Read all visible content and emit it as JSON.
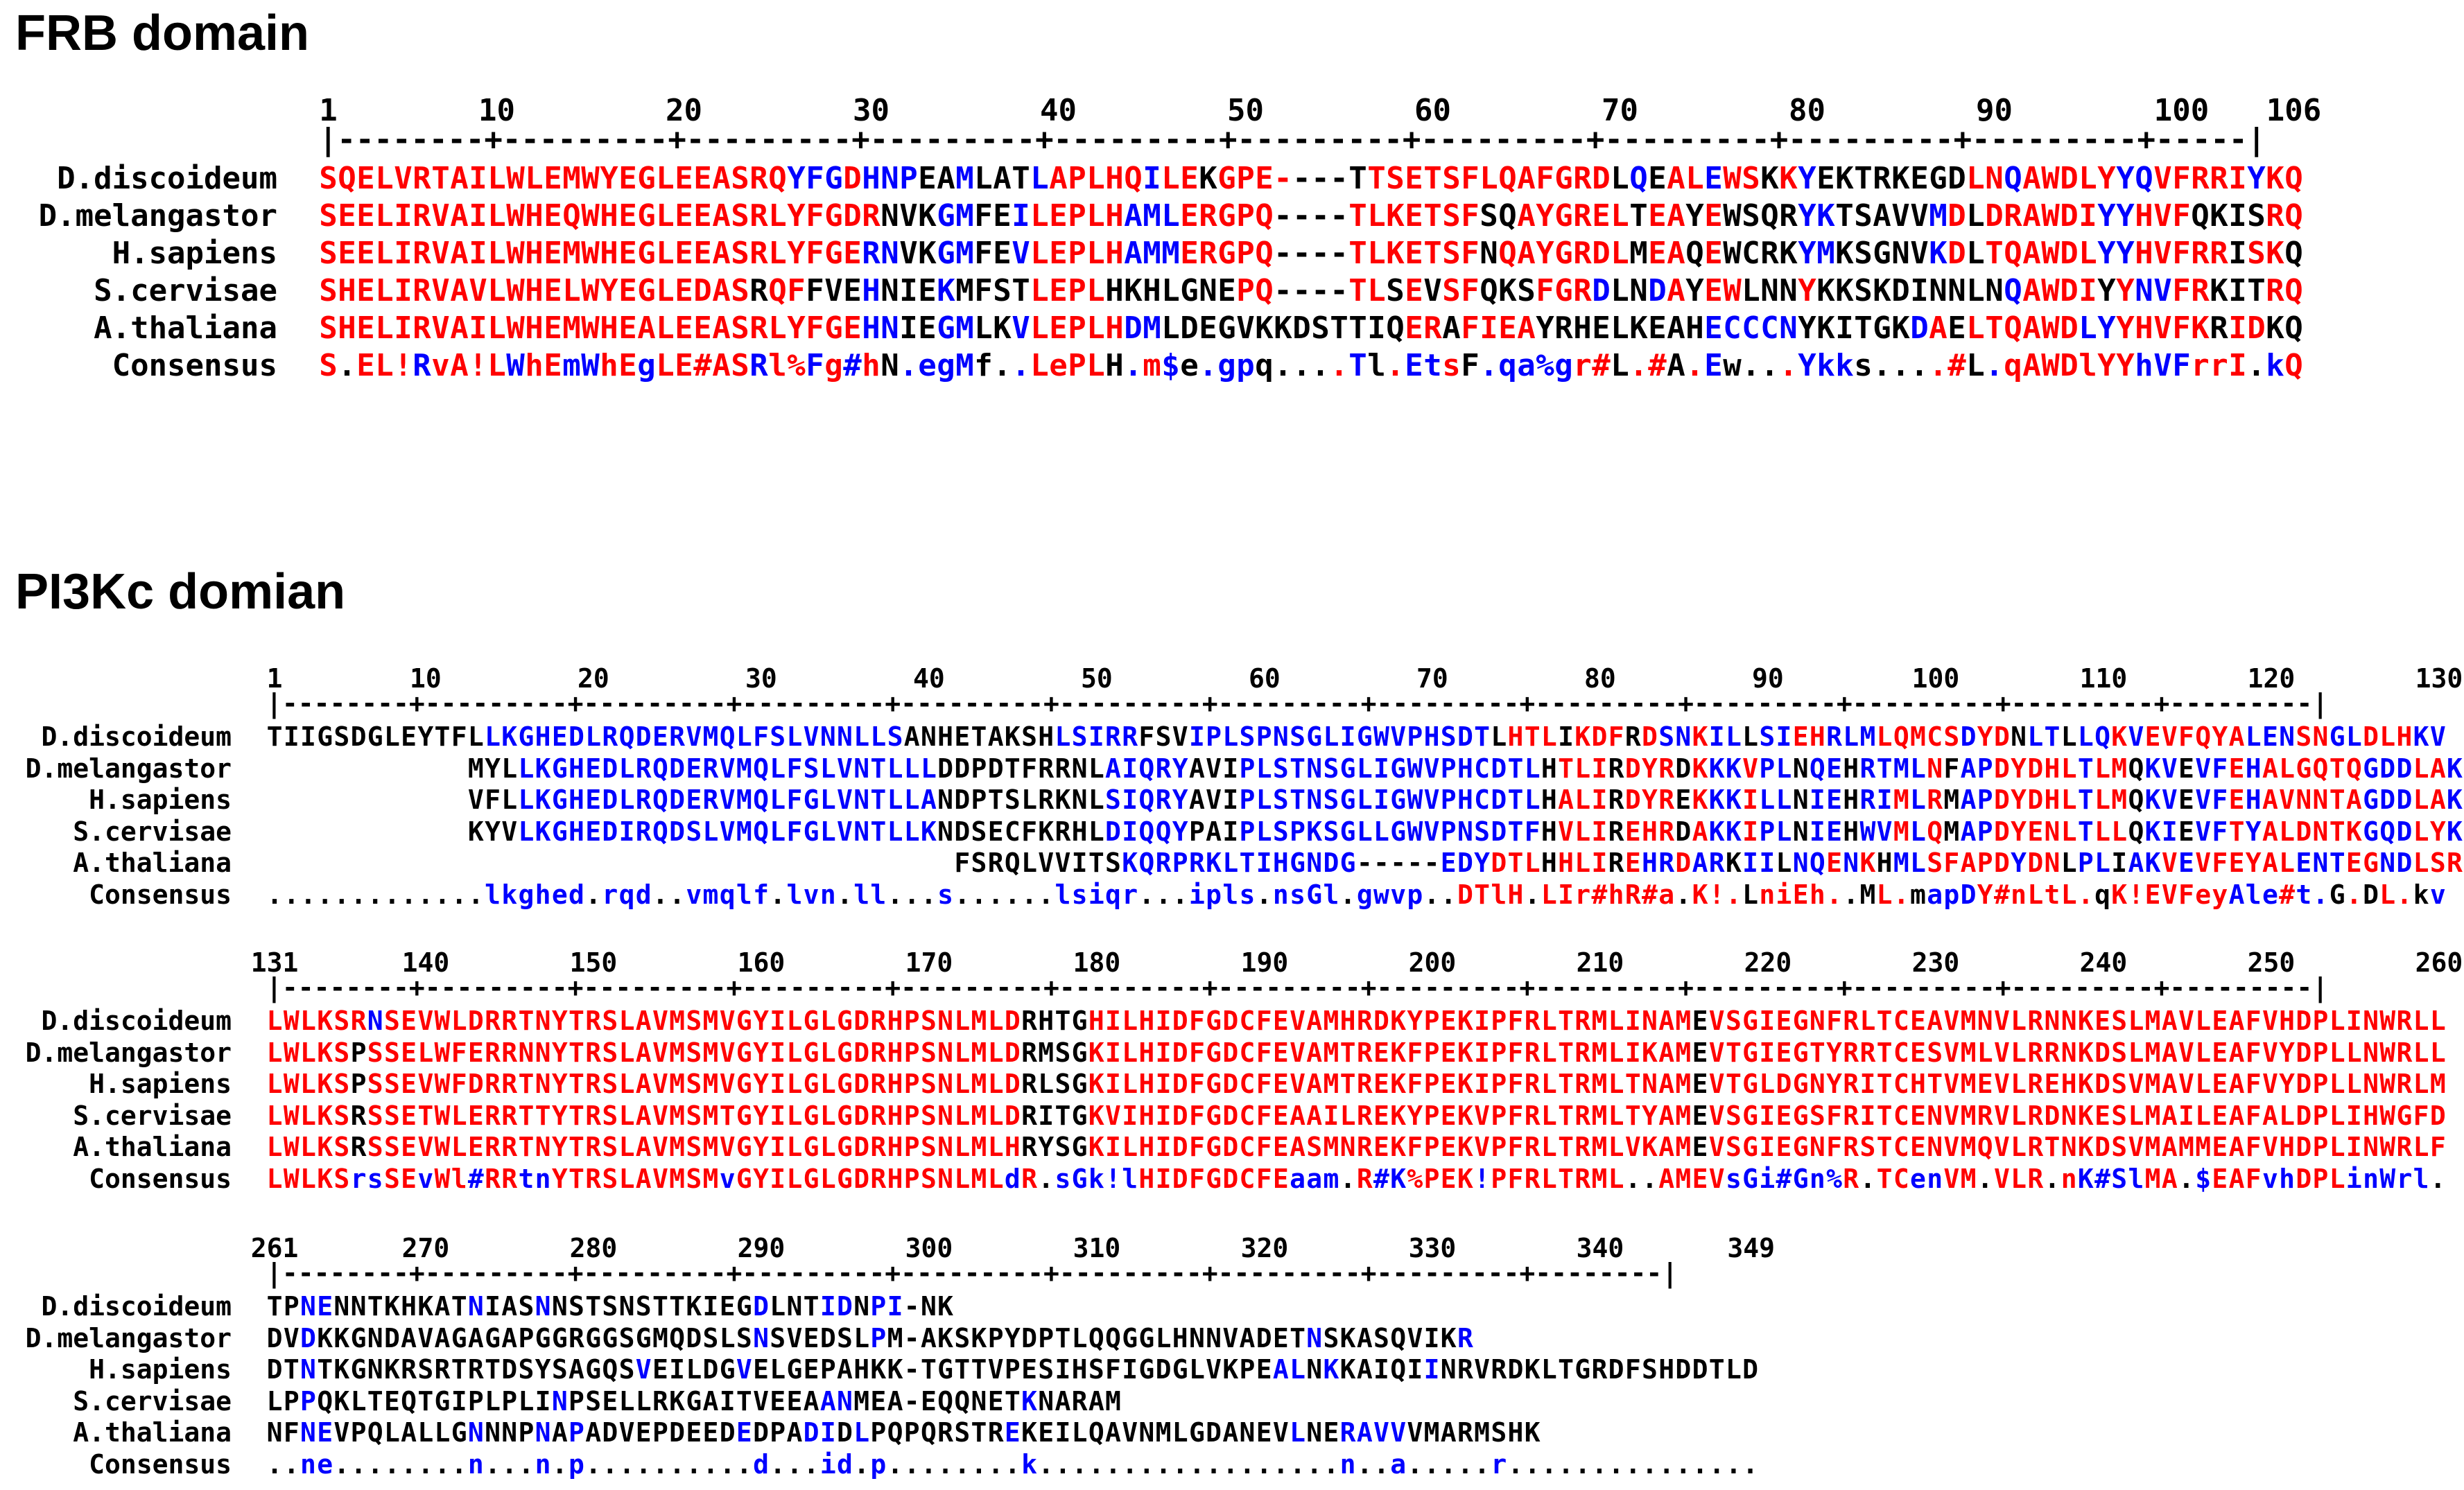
{
  "sections": [
    {
      "title": "FRB domain",
      "blocks": [
        {
          "ticks": [
            "1",
            "10",
            "20",
            "30",
            "40",
            "50",
            "60",
            "70",
            "80",
            "90",
            "100",
            "106"
          ],
          "tick_positions": [
            1,
            10,
            20,
            30,
            40,
            50,
            60,
            70,
            80,
            90,
            100,
            106
          ],
          "length": 106,
          "rows": [
            {
              "name": "D.discoideum",
              "seq": "SQELVRTAILWLEMWYEGLEEASRQYFGDHNPEAMLATLAPLHQILEKGPE----TTSETSFLQAFGRDLQEALEWSKKYEKTRKEGDLNQAWDLYYQVFRRIYKQ",
              "color": "rrrrrrrrrrrrrrrrrrrrrrrrrbbbrbbbkkbkkkbrrrrrbrrkrrrr----rrrrrrrrrrrrrkbkrrbrrkrbkkkkkkkkrrbrrrrrbbrrrrrbrrr"
            },
            {
              "name": "D.melangastor",
              "seq": "SEELIRVAILWHEQWHEGLEEASRLYFGDRNVKGMFEILEPLHAMLERGPQ----TLKETSFSQAYGRELTEAYEWSQRYKTSAVVMDLDRAWDIYYHVFQKISRQ",
              "color": "rrrrrrrrrrrrrrrrrrrrrrrrrrrrrrkkkbbkkbrrrrrbbbrrrrr----rrrrrrrkkrrrrrrkrrkrkkkkbbkkkkkbrkrrrrrrbbrrrkkkkrr"
            },
            {
              "name": "H.sapiens",
              "seq": "SEELIRVAILWHEMWHEGLEEASRLYFGERNVKGMFEVLEPLHAMMERGPQ----TLKETSFNQAYGRDLMEAQEWCRKYMKSGNVKDLTQAWDLYYHVFRRISKQ",
              "color": "rrrrrrrrrrrrrrrrrrrrrrrrrrrrrbbkkbbkkbrrrrrbbbrrrrr----rrrrrrrkrrrrrrrkrrkrkkkkbbkkkkkbrkrrrrrrbbrrrrrkrr"
            },
            {
              "name": "S.cervisae",
              "seq": "SHELIRVAVLWHELWYEGLEDASRQFFVEHNIEKMFSTLEPLHKHLGNEPQ----TLSEVSFQKSFGRDLNDAYEWLNNYKKSKDINNLNQAWDIYYNVFRKITRQ",
              "color": "rrrrrrrrrrrrrrrrrrrrrrrkrrkkkbkkkbkkkkrrrrkkkkkkkrr----rrkrkrrkkkrrrbkkbrkrrkkkrkkkkkkkkkkbrrrrkrbbrrkkkrr"
            },
            {
              "name": "A.thaliana",
              "seq": "SHELIRVAILWHEMWHEALEEASRLYFGEHNIEGMLKVLEPLHDMLDEGVKKDSTTIQERAFIEAYRHELKEAHECCCNYKITGKDAELTQAWDLYYHVFKRIDKQ",
              "color": "rrrrrrrrrrrrrrrrrrrrrrrrrrrrrbbkkbbkkbrrrrrbbkkkkkkkkkkkkkrrkrrrrkkkkkkkkkbbbbbkkkkkkbrkrrrrrrbbrrrrrkrr"
            },
            {
              "name": "Consensus",
              "seq": "S.EL!RvA!LWhEmWhEgLE#ASRl%Fg#hN.egMf..LePLH.m$e.gpq....Tl.EtsF.qa%gr#L.#A.Ew...Ykks....#L.qAWDlYYhVFrrI.kQ",
              "color": "r.rrrbrrrrbrrbbrrbrrrrrbrrbrbr.bbbb..brrrr.brb.bbb....rb.rbbr.bbbbbrr.rr.rb...rbbb....rr.brrrrrrrbbbrrr.br"
            }
          ]
        }
      ]
    },
    {
      "title": "PI3Kc domian",
      "blocks": [
        {
          "ticks": [
            "1",
            "10",
            "20",
            "30",
            "40",
            "50",
            "60",
            "70",
            "80",
            "90",
            "100",
            "110",
            "120",
            "130"
          ],
          "tick_positions": [
            1,
            10,
            20,
            30,
            40,
            50,
            60,
            70,
            80,
            90,
            100,
            110,
            120,
            130
          ],
          "length": 130,
          "rows": [
            {
              "name": "D.discoideum",
              "seq": "TIIGSDGLEYTFLLKGHEDLRQDERVMQLFSLVNNLLSANHETAKSHLSIRRFSVIPLSPNSGLIGWVPHSDTLHTLIKDFRDSNKILLSIEHRLMLQMCSDYDNLTLLQKVEVFQYALENSNGLDLHKV",
              "color": "kkkkkkkkkkkkkbbbbbbbbbbbbbbbbbbbbbbbbbkkkkkkkkkbbbbbkkkbbbbbbbbbbbbbbbbbbkrrrkrrrkrbbrbbkbbrrbbbrrrrrbrrkbbkbbrbrrrrrrbbbrrbbrrrbbbrbb"
            },
            {
              "name": "D.melangastor",
              "seq": "            MYLLKGHEDLRQDERVMQLFSLVNTLLLDDPDTFRRNLAIQRYAVIPLSTNSGLIGWVPHCDTLHTLIRDYRDKKKVPLNQEHRTMLNFAPDYDHLTLMQKVEVFEHALGQTQGDDLAKL",
              "color": "            kkkbbbbbbbbbbbbbbbbbbbbbbbbbkkkkkkkkkkbbbbbkkkbbbbbbbbbbbbbbbbbbkrrrkrrrkrbbrbbkbbkbbbbrkbbrrrrrbrrkbbkbbrbrrrrrrbbbrrbbrrrbbbrbb"
            },
            {
              "name": "H.sapiens",
              "seq": "            VFLLKGHEDLRQDERVMQLFGLVNTLLANDPTSLRKNLSIQRYAVIPLSTNSGLIGWVPHCDTLHALIRDYREKKKILLNIEHRIMLRMAPDYDHLTLMQKVEVFEHAVNNTAGDDLAKL",
              "color": "            kkkbbbbbbbbbbbbbbbbbbbbbbbbbkkkkkkkkkkbbbbbkkkbbbbbbbbbbbbbbbbbbkrrrkrrrkrbbrbbkbbkbbrbrkbbrrrrrbrrkbbkbbrbrrrrrrbbbrrbbrrrbbbrbb"
            },
            {
              "name": "S.cervisae",
              "seq": "            KYVLKGHEDIRQDSLVMQLFGLVNTLLKNDSECFKRHLDIQQYPAIPLSPKSGLLGWVPNSDTFHVLIREHRDAKKIPLNIEHWVMLQMAPDYENLTLLQKIEVFTYALDNTKGQDLYKI",
              "color": "            kkkbbbbbbbbbbbbbbbbbbbbbbbbbkkkkkkkkkkbbbbbkkkbbbbbbbbbbbbbbbbbbkrrrkrrrkrbbrbbkbbkbbrbrkbbrrrrrbrrkbbkbbrbrrrrrrbbbrrbbrrrbbbrbb"
            },
            {
              "name": "A.thaliana",
              "seq": "                                         FSRQLVVITSKQRPRKLTIHGNDG-----EDYDTLHHLIREHRDARKIILNQENKHMLSFAPDYDNLPLIAKVEVFEYALENTEGNDLSRV",
              "color": "                                         kkkkkkkkkkbbbbbbbbbbbbbb-----bbbrrrkrrrkrbbrbbkbbkbbrbrkbbrrrrrbrrkbbkbbrbrrrrrrbbbrrbbrrrbbbrbb"
            },
            {
              "name": "Consensus",
              "seq": ".............lkghed.rqd..vmqlf.lvn.ll...s......lsiqr...ipls.nsGl.gwvp..DTlH.LIr#hR#a.K!.LniEh..ML.mapDY#nLtL.qK!EVFeyAle#t.G.DL.kv",
              "color": ".............bbbbbb.bbb..bbbbb.bbb.bb...b......bbbbb...bbbb.bbbb.bbbb..rrrr.rrrrrrrr.rrr.rrrrr..rr.bbbrrrrrrr.rrrrrrrbbbrbb.r.rr.bb"
            }
          ]
        },
        {
          "ticks": [
            "131",
            "140",
            "150",
            "160",
            "170",
            "180",
            "190",
            "200",
            "210",
            "220",
            "230",
            "240",
            "250",
            "260"
          ],
          "tick_positions": [
            131,
            140,
            150,
            160,
            170,
            180,
            190,
            200,
            210,
            220,
            230,
            240,
            250,
            260
          ],
          "length": 130,
          "rows": [
            {
              "name": "D.discoideum",
              "seq": "LWLKSRNSEVWLDRRTNYTRSLAVMSMVGYILGLGDRHPSNLMLDRHTGHILHIDFGDCFEVAMHRDKYPEKIPFRLTRMLINAMEVSGIEGNFRLTCEAVMNVLRNNKESLMAVLEAFVHDPLINWRLL",
              "color": "rrrrrrbrrrrrrrrrrrrrrrrrrrrrrrrrrrrrrrrrrrrrrkkkkrrrrrrrrrrrrrrrrrrrrrrrrrrrrrrrrrrrrkrrrrrrrrrrrrrrrrrrrrrrrrrrrrrrrrrrrrrrrrrrrrrbrrrbb"
            },
            {
              "name": "D.melangastor",
              "seq": "LWLKSPSSELWFERRNNYTRSLAVMSMVGYILGLGDRHPSNLMLDRMSGKILHIDFGDCFEVAMTREKFPEKIPFRLTRMLIKAMEVTGIEGTYRRTCESVMLVLRRNKDSLMAVLEAFVYDPLLNWRLL",
              "color": "rrrrrkrrrrrrrrrrrrrrrrrrrrrrrrrrrrrrrrrrrrrrrkkkkrrrrrrrrrrrrrrrrrrrrrrrrrrrrrrrrrrrrkrrrrrrrrrrrrrrrrrrrrrrrrrrrrrrrrrrrrrrrrrrrrrbrrrbb"
            },
            {
              "name": "H.sapiens",
              "seq": "LWLKSPSSEVWFDRRTNYTRSLAVMSMVGYILGLGDRHPSNLMLDRLSGKILHIDFGDCFEVAMTREKFPEKIPFRLTRMLTNAMEVTGLDGNYRITCHTVMEVLREHKDSVMAVLEAFVYDPLLNWRLM",
              "color": "rrrrrkrrrrrrrrrrrrrrrrrrrrrrrrrrrrrrrrrrrrrrrkkkkrrrrrrrrrrrrrrrrrrrrrrrrrrrrrrrrrrrrkrrrrrrrrrrrrrrrrrrrrrrrrrrrrrrrrrrrrrrrrrrrrrbrrrbb"
            },
            {
              "name": "S.cervisae",
              "seq": "LWLKSRSSETWLERRTTYTRSLAVMSMTGYILGLGDRHPSNLMLDRITGKVIHIDFGDCFEAAILREKYPEKVPFRLTRMLTYAMEVSGIEGSFRITCENVMRVLRDNKESLMAILEAFALDPLIHWGFD",
              "color": "rrrrrkrrrrrrrrrrrrrrrrrrrrrrrrrrrrrrrrrrrrrrrkkkkrrrrrrrrrrrrrrrrrrrrrrrrrrrrrrrrrrrrkrrrrrrrrrrrrrrrrrrrrrrrrrrrrrrrrrrrrrrrrrrrrrbrrrbb"
            },
            {
              "name": "A.thaliana",
              "seq": "LWLKSRSSEVWLERRTNYTRSLAVMSMVGYILGLGDRHPSNLMLHRYSGKILHIDFGDCFEASMNREKFPEKVPFRLTRMLVKAMEVSGIEGNFRSTCENVMQVLRTNKDSVMAMMEAFVHDPLINWRLF",
              "color": "rrrrrkrrrrrrrrrrrrrrrrrrrrrrrrrrrrrrrrrrrrrrrkkkkrrrrrrrrrrrrrrrrrrrrrrrrrrrrrrrrrrrrkrrrrrrrrrrrrrrrrrrrrrrrrrrrrrrrrrrrrrrrrrrrrrbrrrbb"
            },
            {
              "name": "Consensus",
              "seq": "LWLKSrsSEvWl#RRtnYTRSLAVMSMvGYILGLGDRHPSNLMLdR.sGk!lHIDFGDCFEaam.R#K%PEK!PFRLTRML..AMEVsGi#Gn%R.TCenVM.VLR.nK#SlMA.$EAFvhDPLinWrl.",
              "color": "rrrrrbbrrbrrbrrbbrrrrrrrrrrbrrrrrrrrrrrrrrrrbr.bbbbbrrrrrrrrrbbb.rbbrrrrbrrrrrrrr..rrrrbbbbbbbr.rrbbrr.rrr.rbbbbrr.brrrbbrrrbbbbb."
            }
          ]
        },
        {
          "ticks": [
            "261",
            "270",
            "280",
            "290",
            "300",
            "310",
            "320",
            "330",
            "340",
            "349"
          ],
          "tick_positions": [
            261,
            270,
            280,
            290,
            300,
            310,
            320,
            330,
            340,
            349
          ],
          "length": 89,
          "rows": [
            {
              "name": "D.discoideum",
              "seq": "TPNENNTKHKATNIASNNSTSNSTTKIEGDLNTIDNPI-NK",
              "color": "kkbbkkkkkkkkbkkkbkkkkkkkkkkkkbkkkbbkbb-kk"
            },
            {
              "name": "D.melangastor",
              "seq": "DVDKKGNDAVAGAGAPGGRGGSGMQDSLSNSVEDSLPM-AKSKPYDPTLQQGGLHNNVADETNSKASQVIKR",
              "color": "kkbkkkkkkkkkkkkkkkkkkkkkkkkkkbkkkkkkbk-kkkkkkkkkkkkkkkkkkkkkkkbkkkkkkkkb"
            },
            {
              "name": "H.sapiens",
              "seq": "DTNTKGNKRSRTRTDSYSAGQSVEILDGVELGEPAHKK-TGTTVPESIHSFIGDGLVKPEALNKKAIQIINRVRDKLTGRDFSHDDTLD",
              "color": "kkbkkkkkkkkkkkkkkkkkkkbkkkkkbkkkkkkkk-kkkkkkkkkkkkkkkkkkkkkkbbkbkkkkkbkkkkkkkkkkkkkkkkkk"
            },
            {
              "name": "S.cervisae",
              "seq": "LPPQKLTEQTGIPLPLINPSELLRKGAITVEEAANMEA-EQQNETKNARAM",
              "color": "kkbkkkkkkkkkkkkkkbkkkkkkkkkkkkkkkbbkkk-kkkkkkbkkkkk"
            },
            {
              "name": "A.thaliana",
              "seq": "NFNEVPQLALLGNNNPNAPADVEPDEEDEDPADIDLPQPQRSTREKEILQAVNMLGDANEVLNERAVVVMARMSHK",
              "color": "kkbbkkkkkkkkbkkkbkbkkkkkkkkkbkkkbbkbkkkkkkkkbkkkkkkkkkkkkkkkkbkkbbbbkkkkkkkk"
            },
            {
              "name": "Consensus",
              "seq": "..ne........n...n.p..........d...id.p........k..................n..a.....r...............",
              "color": "..bb........b...b.b..........b...bb.b........b..................b..b.....b..............."
            }
          ]
        }
      ]
    }
  ]
}
